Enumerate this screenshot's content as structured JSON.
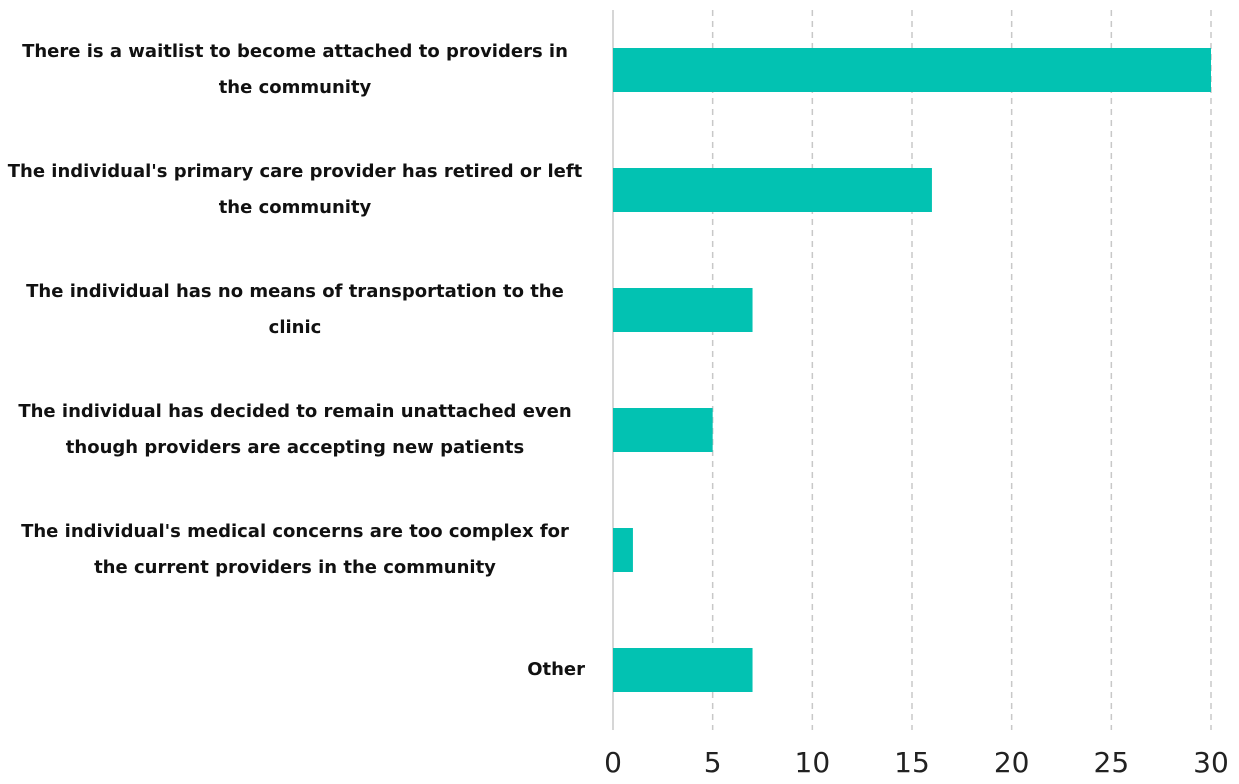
{
  "chart_data": {
    "type": "bar",
    "orientation": "horizontal",
    "categories": [
      "There is a waitlist to become attached to providers in the community",
      "The individual's primary care provider has retired or left the community",
      "The individual has no means of transportation to the clinic",
      "The individual has decided to remain unattached even though providers are accepting new patients",
      "The individual's medical concerns are too complex for the current providers in the community",
      "Other"
    ],
    "values": [
      30,
      16,
      7,
      5,
      1,
      7
    ],
    "color": "#02c2b2",
    "xlim": [
      0,
      30
    ],
    "xticks": [
      0,
      5,
      10,
      15,
      20,
      25,
      30
    ],
    "grid": true
  }
}
